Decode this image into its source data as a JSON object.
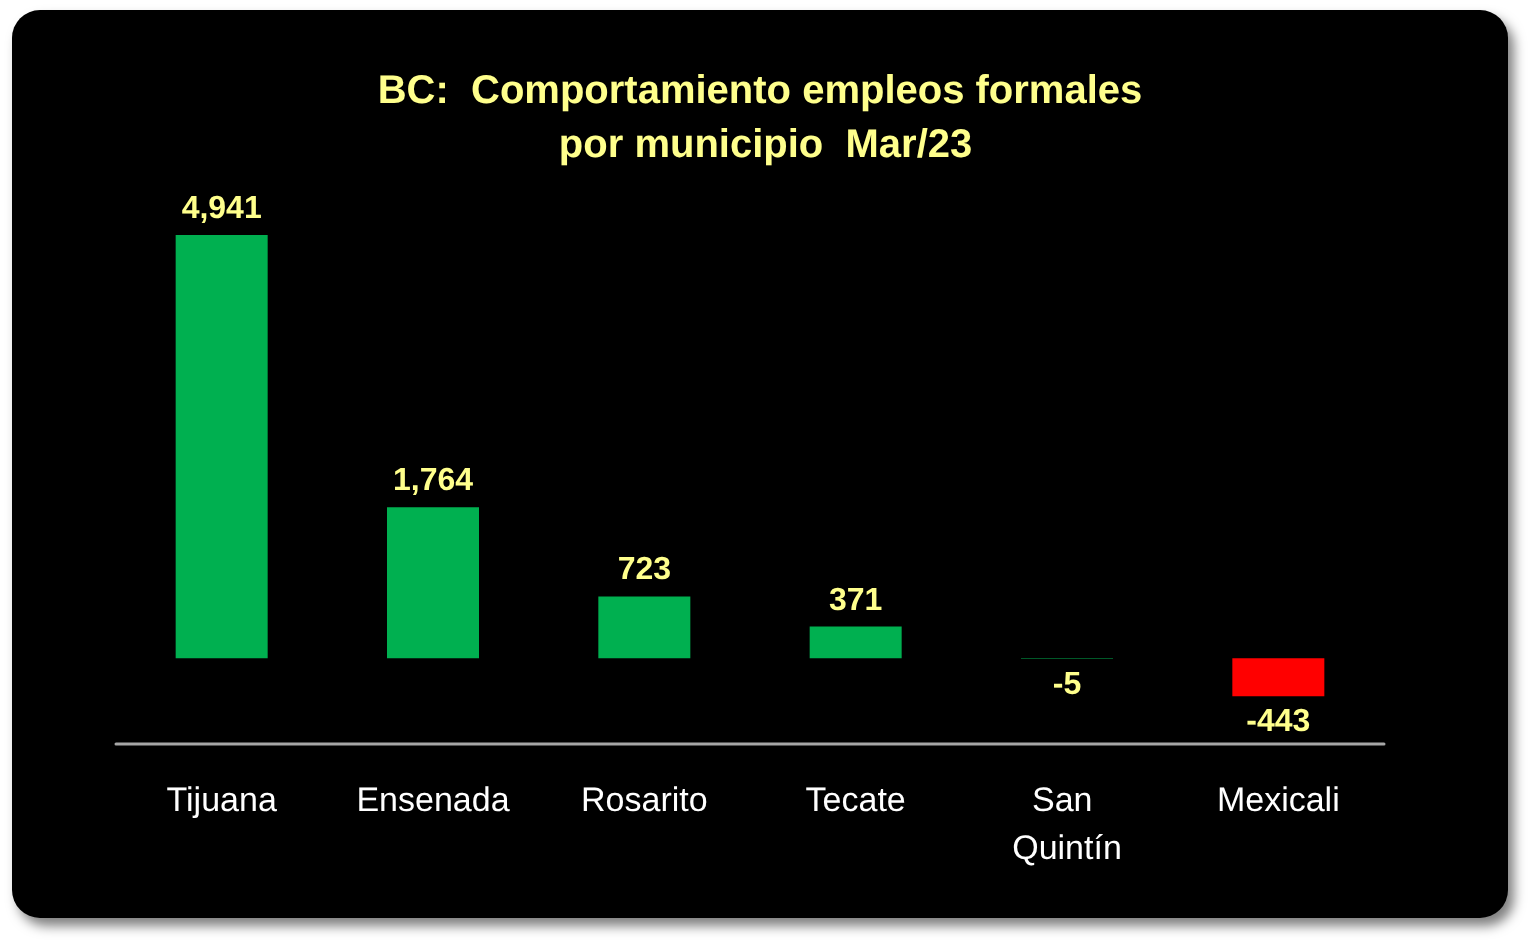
{
  "chart_data": {
    "type": "bar",
    "title": "BC:  Comportamiento empleos formales por municipio  Mar/23",
    "categories": [
      "Tijuana",
      "Ensenada",
      "Rosarito",
      "Tecate",
      "San Quintín",
      "Mexicali"
    ],
    "values": [
      4941,
      1764,
      723,
      371,
      -5,
      -443
    ],
    "colors": [
      "#00b050",
      "#00b050",
      "#00b050",
      "#00b050",
      "#00b050",
      "#ff0000"
    ],
    "value_labels": [
      "4,941",
      "1,764",
      "723",
      "371",
      "-5",
      "-443"
    ]
  }
}
